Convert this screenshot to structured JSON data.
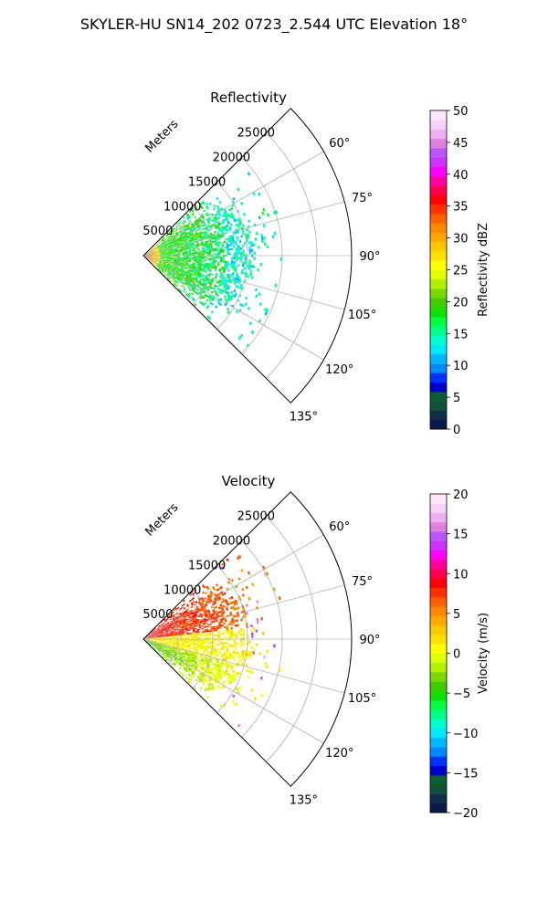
{
  "figure": {
    "suptitle": "SKYLER-HU  SN14_202  0723_2.544 UTC Elevation 18°"
  },
  "chart_data": [
    {
      "type": "heatmap",
      "subtype": "polar-sector",
      "title": "Reflectivity",
      "radial_label": "Meters",
      "theta_range_deg": [
        45,
        135
      ],
      "theta_zero": "north-clockwise",
      "r_range": [
        0,
        30000
      ],
      "r_ticks": [
        5000,
        10000,
        15000,
        20000,
        25000
      ],
      "r_ticklabels": [
        "5000",
        "10000",
        "15000",
        "20000",
        "25000"
      ],
      "theta_ticks": [
        60,
        75,
        90,
        105,
        120,
        135
      ],
      "theta_ticklabels": [
        "60°",
        "75°",
        "90°",
        "105°",
        "120°",
        "135°"
      ],
      "grid": true,
      "colorbar": {
        "label": "Reflectivity dBZ",
        "vmin": 0,
        "vmax": 50,
        "ticks": [
          0,
          5,
          10,
          15,
          20,
          25,
          30,
          35,
          40,
          45,
          50
        ],
        "ticklabels": [
          "0",
          "5",
          "10",
          "15",
          "20",
          "25",
          "30",
          "35",
          "40",
          "45",
          "50"
        ],
        "colors": [
          "#0a1a4a",
          "#0f3048",
          "#14503a",
          "#0a6030",
          "#0000c8",
          "#0033ff",
          "#0088ff",
          "#00b8ff",
          "#00e8ff",
          "#00ffc8",
          "#00ff88",
          "#00ff40",
          "#10e000",
          "#40cc00",
          "#78d800",
          "#b0f000",
          "#e0ff00",
          "#ffff00",
          "#ffe000",
          "#ffc800",
          "#ffa800",
          "#ff8800",
          "#ff6000",
          "#ff3000",
          "#ff0000",
          "#ff0050",
          "#ff00a0",
          "#ff00ff",
          "#cc33ff",
          "#bb55ff",
          "#e080e0",
          "#f0b0f0",
          "#f6d0f6",
          "#fbe8fb"
        ]
      },
      "field": {
        "description": "scattered echoes concentrated near radar, up to ~20000 m",
        "typical_values_dBZ": [
          5,
          35
        ],
        "near_radar_peak": 33,
        "main_band": 20,
        "edge_band": 14
      }
    },
    {
      "type": "heatmap",
      "subtype": "polar-sector",
      "title": "Velocity",
      "radial_label": "Meters",
      "theta_range_deg": [
        45,
        135
      ],
      "theta_zero": "north-clockwise",
      "r_range": [
        0,
        30000
      ],
      "r_ticks": [
        5000,
        10000,
        15000,
        20000,
        25000
      ],
      "r_ticklabels": [
        "5000",
        "10000",
        "15000",
        "20000",
        "25000"
      ],
      "theta_ticks": [
        60,
        75,
        90,
        105,
        120,
        135
      ],
      "theta_ticklabels": [
        "60°",
        "75°",
        "90°",
        "105°",
        "120°",
        "135°"
      ],
      "grid": true,
      "colorbar": {
        "label": "Velocity (m/s)",
        "vmin": -20,
        "vmax": 20,
        "ticks": [
          -20,
          -15,
          -10,
          -5,
          0,
          5,
          10,
          15,
          20
        ],
        "ticklabels": [
          "−20",
          "−15",
          "−10",
          "−5",
          "0",
          "5",
          "10",
          "15",
          "20"
        ],
        "colors": [
          "#0a1a4a",
          "#0f3048",
          "#14503a",
          "#0a6030",
          "#0000c8",
          "#0033ff",
          "#0088ff",
          "#00b8ff",
          "#00e8ff",
          "#00ffc8",
          "#00ff88",
          "#00ff40",
          "#10e000",
          "#40cc00",
          "#78d800",
          "#b0f000",
          "#e0ff00",
          "#ffff00",
          "#ffe000",
          "#ffc800",
          "#ffa800",
          "#ff8800",
          "#ff6000",
          "#ff3000",
          "#ff0000",
          "#ff0050",
          "#ff00a0",
          "#ff00ff",
          "#cc33ff",
          "#bb55ff",
          "#e080e0",
          "#f0b0f0",
          "#f6d0f6",
          "#fbe8fb"
        ]
      },
      "field": {
        "description": "positive (outbound) velocities on the north-east side, negative on the south-east side",
        "north_side_ms": 9,
        "center_ms": 1,
        "south_side_ms": -4
      }
    }
  ]
}
